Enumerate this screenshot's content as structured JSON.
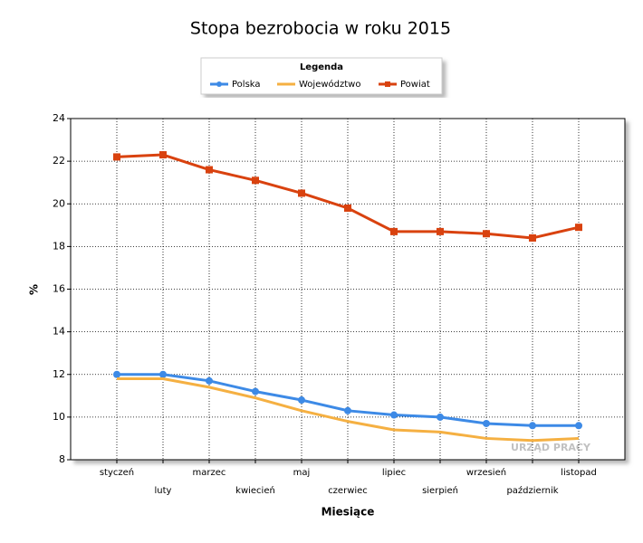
{
  "chart_data": {
    "type": "line",
    "title": "Stopa bezrobocia w roku 2015",
    "legend_title": "Legenda",
    "x_label": "Miesiące",
    "y_label": "%",
    "watermark": "URZĄD PRACY",
    "categories": [
      "styczeń",
      "luty",
      "marzec",
      "kwiecień",
      "maj",
      "czerwiec",
      "lipiec",
      "sierpień",
      "wrzesień",
      "październik",
      "listopad"
    ],
    "series": [
      {
        "name": "Polska",
        "color": "#3d8ae6",
        "marker": "circle",
        "values": [
          12.0,
          12.0,
          11.7,
          11.2,
          10.8,
          10.3,
          10.1,
          10.0,
          9.7,
          9.6,
          9.6
        ]
      },
      {
        "name": "Województwo",
        "color": "#f5b042",
        "marker": "none",
        "values": [
          11.8,
          11.8,
          11.4,
          10.9,
          10.3,
          9.8,
          9.4,
          9.3,
          9.0,
          8.9,
          9.0
        ]
      },
      {
        "name": "Powiat",
        "color": "#d9420f",
        "marker": "square",
        "values": [
          22.2,
          22.3,
          21.6,
          21.1,
          20.5,
          19.8,
          18.7,
          18.7,
          18.6,
          18.4,
          18.9
        ]
      }
    ],
    "ylim": [
      8,
      24
    ],
    "yticks": [
      8,
      10,
      12,
      14,
      16,
      18,
      20,
      22,
      24
    ],
    "grid": true
  }
}
